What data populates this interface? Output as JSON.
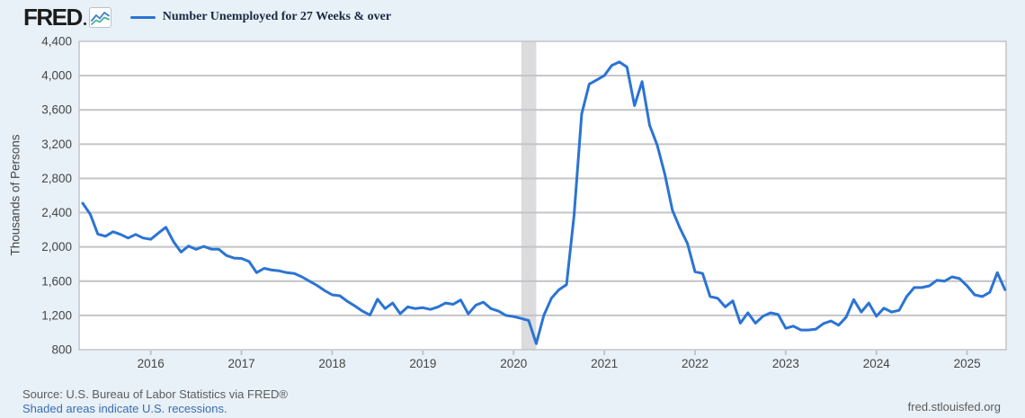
{
  "header": {
    "logo_text": "FRED",
    "logo_icon": "line-chart-icon",
    "legend_label": "Number Unemployed for 27 Weeks & over"
  },
  "chart_data": {
    "type": "line",
    "title": "Number Unemployed for 27 Weeks & over",
    "ylabel": "Thousands of Persons",
    "ylim": [
      800,
      4400
    ],
    "y_ticks": [
      {
        "value": 800,
        "label": "800"
      },
      {
        "value": 1200,
        "label": "1,200"
      },
      {
        "value": 1600,
        "label": "1,600"
      },
      {
        "value": 2000,
        "label": "2,000"
      },
      {
        "value": 2400,
        "label": "2,400"
      },
      {
        "value": 2800,
        "label": "2,800"
      },
      {
        "value": 3200,
        "label": "3,200"
      },
      {
        "value": 3600,
        "label": "3,600"
      },
      {
        "value": 4000,
        "label": "4,000"
      },
      {
        "value": 4400,
        "label": "4,400"
      }
    ],
    "x_ticks": [
      {
        "year": 2016,
        "label": "2016"
      },
      {
        "year": 2017,
        "label": "2017"
      },
      {
        "year": 2018,
        "label": "2018"
      },
      {
        "year": 2019,
        "label": "2019"
      },
      {
        "year": 2020,
        "label": "2020"
      },
      {
        "year": 2021,
        "label": "2021"
      },
      {
        "year": 2022,
        "label": "2022"
      },
      {
        "year": 2023,
        "label": "2023"
      },
      {
        "year": 2024,
        "label": "2024"
      },
      {
        "year": 2025,
        "label": "2025"
      }
    ],
    "x_range_year_frac": [
      2015.21,
      2025.43
    ],
    "grid": "horizontal",
    "legend_position": "top-left",
    "recessions": [
      {
        "start_year_frac": 2020.085,
        "end_year_frac": 2020.25
      }
    ],
    "series": [
      {
        "name": "Number Unemployed for 27 Weeks & over",
        "frequency": "monthly",
        "start_month": "2015-04",
        "end_month": "2025-06",
        "units": "Thousands of Persons",
        "values": [
          2510,
          2381,
          2150,
          2125,
          2177,
          2146,
          2104,
          2146,
          2104,
          2089,
          2161,
          2230,
          2063,
          1940,
          2010,
          1971,
          2006,
          1974,
          1972,
          1900,
          1870,
          1865,
          1830,
          1700,
          1750,
          1730,
          1720,
          1700,
          1690,
          1650,
          1600,
          1550,
          1490,
          1440,
          1430,
          1365,
          1310,
          1250,
          1205,
          1390,
          1280,
          1345,
          1220,
          1300,
          1280,
          1290,
          1270,
          1300,
          1345,
          1330,
          1380,
          1218,
          1320,
          1355,
          1280,
          1250,
          1200,
          1186,
          1165,
          1140,
          870,
          1200,
          1400,
          1500,
          1560,
          2370,
          3550,
          3900,
          3950,
          4000,
          4120,
          4160,
          4100,
          3650,
          3930,
          3420,
          3190,
          2850,
          2430,
          2220,
          2040,
          1710,
          1690,
          1420,
          1400,
          1300,
          1370,
          1110,
          1230,
          1110,
          1190,
          1230,
          1210,
          1050,
          1075,
          1030,
          1030,
          1040,
          1105,
          1135,
          1085,
          1180,
          1385,
          1240,
          1345,
          1190,
          1285,
          1240,
          1260,
          1420,
          1525,
          1525,
          1545,
          1610,
          1600,
          1650,
          1630,
          1545,
          1440,
          1420,
          1470,
          1700,
          1500
        ]
      }
    ]
  },
  "footer": {
    "source_line": "Source: U.S. Bureau of Labor Statistics via FRED®",
    "recession_note": "Shaded areas indicate U.S. recessions.",
    "site_link": "fred.stlouisfed.org"
  },
  "colors": {
    "background": "#e8f1f8",
    "plot_background": "#ffffff",
    "line": "#2b74d3",
    "grid": "#c4c4c7",
    "border": "#c4c4c7",
    "tick": "#c4c4c7",
    "recession_band": "#dcdcdf",
    "axis_text": "#454545",
    "legend_text": "#1b2940",
    "logo_text": "#1c1c1c",
    "source_text": "#5b5b5b",
    "link": "#3a6cb0"
  }
}
